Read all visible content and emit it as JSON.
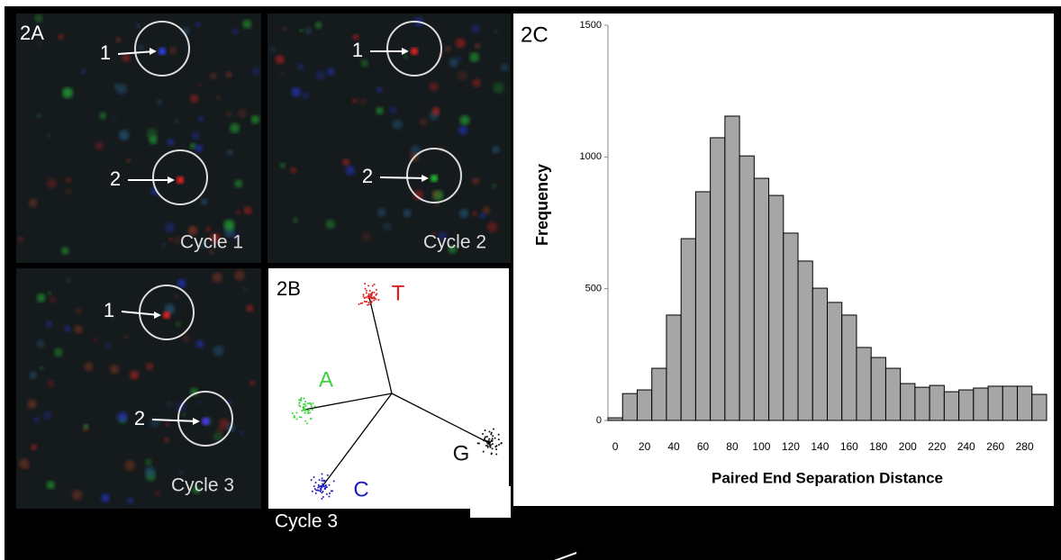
{
  "figure": {
    "panel_2a": {
      "label": "2A",
      "images": [
        {
          "caption": "Cycle 1",
          "markers": [
            "1",
            "2"
          ]
        },
        {
          "caption": "Cycle 2",
          "markers": [
            "1",
            "2"
          ]
        },
        {
          "caption": "Cycle 3",
          "markers": [
            "1",
            "2"
          ]
        }
      ]
    },
    "panel_2b": {
      "label": "2B",
      "clusters": [
        "T",
        "A",
        "C",
        "G"
      ],
      "caption": "Cycle 3"
    },
    "panel_2c": {
      "label": "2C"
    }
  },
  "chart_data": {
    "type": "bar",
    "x_label": "Paired End Separation Distance",
    "y_label": "Frequency",
    "categories": [
      0,
      null,
      20,
      null,
      40,
      null,
      60,
      null,
      80,
      null,
      100,
      null,
      120,
      null,
      140,
      null,
      160,
      null,
      180,
      null,
      200,
      null,
      220,
      null,
      240,
      null,
      260,
      null,
      280,
      null
    ],
    "values": [
      10,
      102,
      116,
      198,
      400,
      690,
      868,
      1073,
      1155,
      1004,
      919,
      854,
      711,
      605,
      502,
      448,
      400,
      277,
      239,
      198,
      140,
      126,
      133,
      109,
      116,
      123,
      130,
      130,
      130,
      99
    ],
    "color": "#a6a6a6",
    "ylim": [
      0,
      1500
    ],
    "yticks": [
      0,
      500,
      1000,
      1500
    ]
  }
}
